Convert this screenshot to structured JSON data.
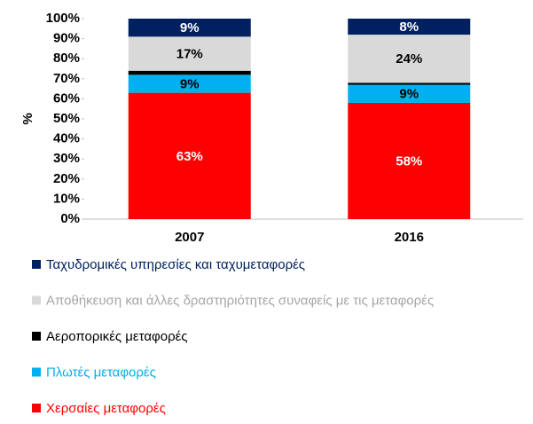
{
  "chart_data": {
    "type": "stacked-bar",
    "y_label": "%",
    "categories": [
      "2007",
      "2016"
    ],
    "series": [
      {
        "name": "Χερσαίες μεταφορές",
        "color": "#ff0000",
        "values": [
          63,
          58
        ],
        "value_labels": [
          "63%",
          "58%"
        ]
      },
      {
        "name": "Πλωτές μεταφορές",
        "color": "#00b0f0",
        "values": [
          9,
          9
        ],
        "value_labels": [
          "9%",
          "9%"
        ]
      },
      {
        "name": "Αεροπορικές μεταφορές",
        "color": "#000000",
        "values": [
          2,
          1
        ]
      },
      {
        "name": "Αποθήκευση και άλλες δραστηριότητες συναφείς με τις μεταφορές",
        "color": "#d9d9d9",
        "values": [
          17,
          24
        ],
        "value_labels": [
          "17%",
          "24%"
        ]
      },
      {
        "name": "Ταχυδρομικές υπηρεσίες και ταχυμεταφορές",
        "color": "#002060",
        "values": [
          9,
          8
        ],
        "value_labels": [
          "9%",
          "8%"
        ]
      }
    ],
    "ylim": [
      0,
      100
    ],
    "yticks": [
      {
        "value": 0,
        "label": "0%"
      },
      {
        "value": 10,
        "label": "10%"
      },
      {
        "value": 20,
        "label": "20%"
      },
      {
        "value": 30,
        "label": "30%"
      },
      {
        "value": 40,
        "label": "40%"
      },
      {
        "value": 50,
        "label": "50%"
      },
      {
        "value": 60,
        "label": "60%"
      },
      {
        "value": 70,
        "label": "70%"
      },
      {
        "value": 80,
        "label": "80%"
      },
      {
        "value": 90,
        "label": "90%"
      },
      {
        "value": 100,
        "label": "100%"
      }
    ],
    "grid": false,
    "legend": "bottom"
  }
}
